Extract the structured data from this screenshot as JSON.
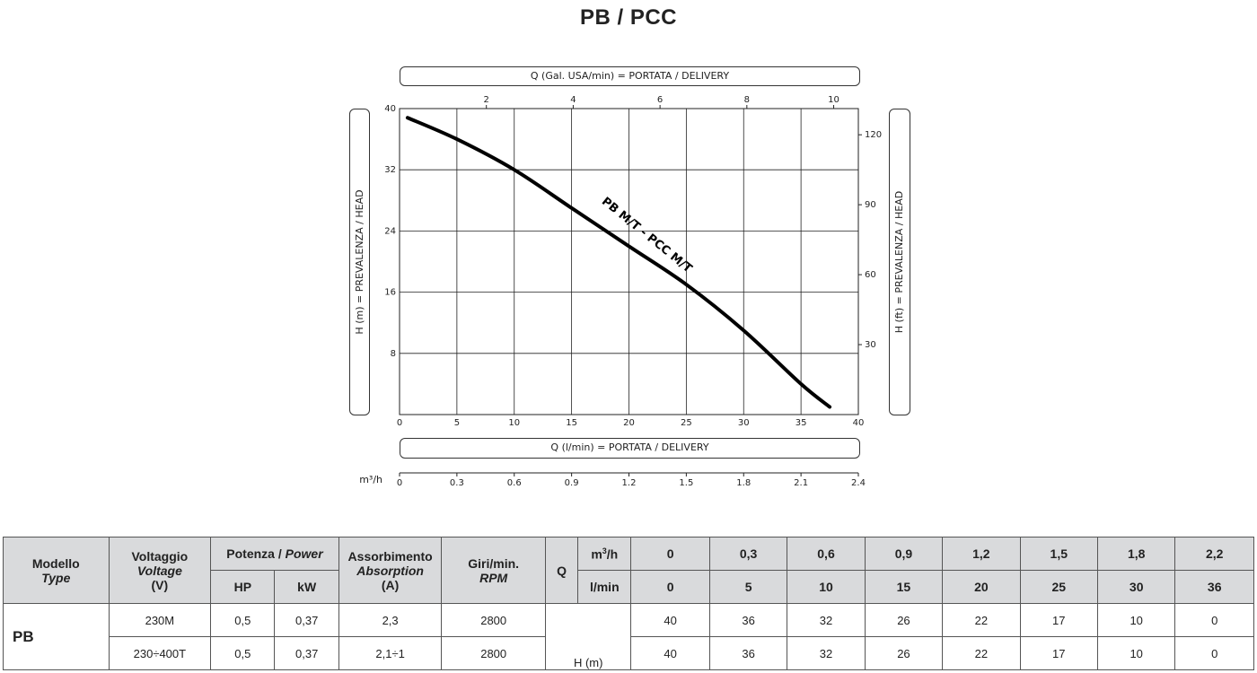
{
  "page_title": "PB / PCC",
  "chart_data": {
    "type": "line",
    "title": "PB / PCC",
    "x_label_bottom": "Q (l/min) = PORTATA / DELIVERY",
    "x_label_top": "Q (Gal. USA/min) = PORTATA / DELIVERY",
    "y_label_left": "H (m) = PREVALENZA / HEAD",
    "y_label_right": "H (ft) = PREVALENZA / HEAD",
    "m3h_label": "m³/h",
    "xlim": [
      0,
      40
    ],
    "ylim": [
      0,
      40
    ],
    "x_ticks": [
      "0",
      "5",
      "10",
      "15",
      "20",
      "25",
      "30",
      "35",
      "40"
    ],
    "y_ticks": [
      "8",
      "16",
      "24",
      "32",
      "40"
    ],
    "top_ticks": [
      "2",
      "4",
      "6",
      "8",
      "10"
    ],
    "right_ticks": [
      "30",
      "60",
      "90",
      "120"
    ],
    "m3h_ticks": [
      "0",
      "0.3",
      "0.6",
      "0.9",
      "1.2",
      "1.5",
      "1.8",
      "2.1",
      "2.4"
    ],
    "grid": true,
    "series": [
      {
        "name": "PB M/T - PCC M/T",
        "x": [
          0.7,
          5,
          10,
          15,
          20,
          25,
          30,
          35,
          37.5
        ],
        "y": [
          38.8,
          36,
          32,
          27,
          22,
          17,
          11,
          4,
          1
        ]
      }
    ]
  },
  "table": {
    "model_header": "Modello",
    "model_header_en": "Type",
    "voltage_header": "Voltaggio",
    "voltage_header_en": "Voltage",
    "voltage_unit": "(V)",
    "power_header": "Potenza / ",
    "power_header_en": "Power",
    "hp_header": "HP",
    "kw_header": "kW",
    "absorption_header": "Assorbimento",
    "absorption_header_en": "Absorption",
    "absorption_unit": "(A)",
    "rpm_header": "Giri/min.",
    "rpm_header_en": "RPM",
    "q_header": "Q",
    "m3h_header": "m",
    "m3h_header_sup": "3",
    "m3h_header_tail": "/h",
    "lmin_header": "l/min",
    "h_label": "H (m)",
    "m3h_values": [
      "0",
      "0,3",
      "0,6",
      "0,9",
      "1,2",
      "1,5",
      "1,8",
      "2,2"
    ],
    "lmin_values": [
      "0",
      "5",
      "10",
      "15",
      "20",
      "25",
      "30",
      "36"
    ],
    "model_name": "PB",
    "rows": [
      {
        "voltage": "230M",
        "hp": "0,5",
        "kw": "0,37",
        "absorption": "2,3",
        "rpm": "2800",
        "heads": [
          "40",
          "36",
          "32",
          "26",
          "22",
          "17",
          "10",
          "0"
        ]
      },
      {
        "voltage": "230÷400T",
        "hp": "0,5",
        "kw": "0,37",
        "absorption": "2,1÷1",
        "rpm": "2800",
        "heads": [
          "40",
          "36",
          "32",
          "26",
          "22",
          "17",
          "10",
          "0"
        ]
      }
    ]
  }
}
